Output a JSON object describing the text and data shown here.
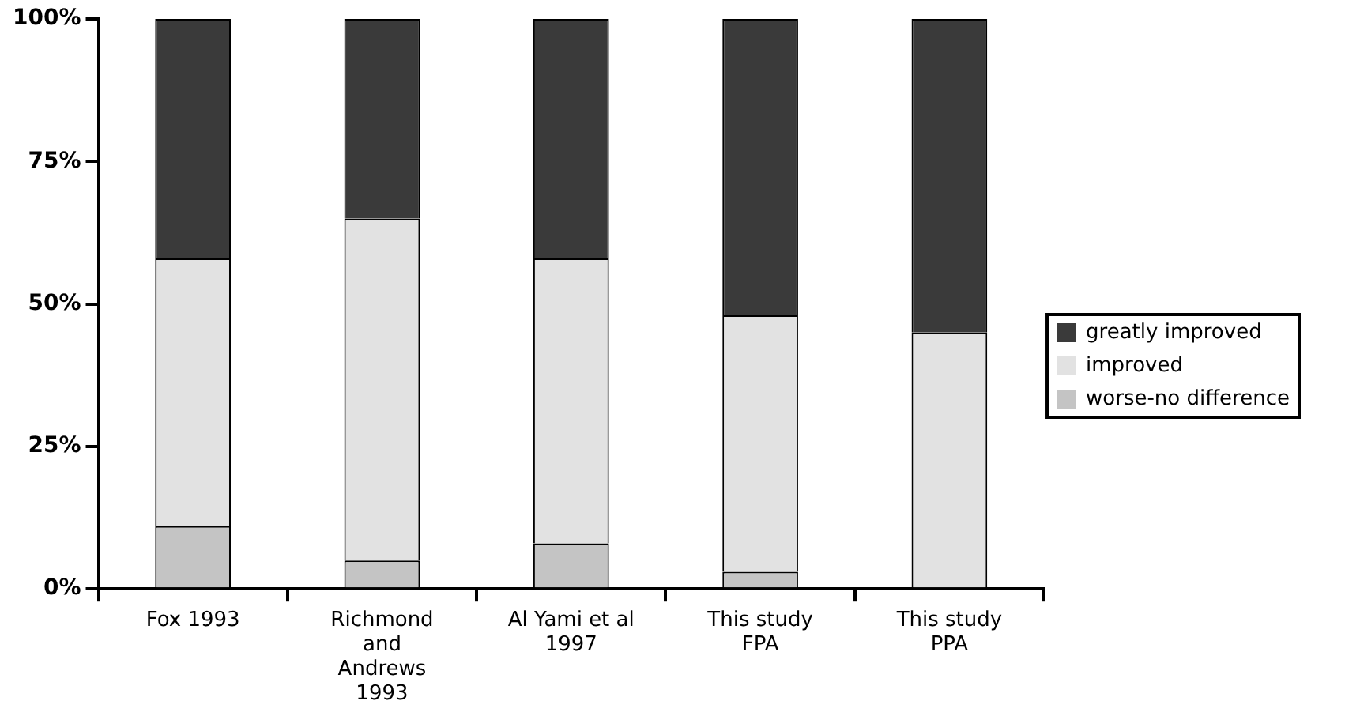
{
  "chart_data": {
    "type": "bar",
    "stacked": true,
    "categories": [
      "Fox 1993",
      "Richmond\nand\nAndrews\n1993",
      "Al Yami et al\n1997",
      "This study\nFPA",
      "This study\nPPA"
    ],
    "series": [
      {
        "name": "worse-no difference",
        "color": "#c4c4c4",
        "values": [
          11,
          5,
          8,
          3,
          0
        ]
      },
      {
        "name": "improved",
        "color": "#e2e2e2",
        "values": [
          47,
          60,
          50,
          45,
          45
        ]
      },
      {
        "name": "greatly improved",
        "color": "#3a3a3a",
        "values": [
          42,
          35,
          42,
          52,
          55
        ]
      }
    ],
    "ylim": [
      0,
      100
    ],
    "yticks": [
      {
        "value": 0,
        "label": "0%"
      },
      {
        "value": 25,
        "label": "25%"
      },
      {
        "value": 50,
        "label": "50%"
      },
      {
        "value": 75,
        "label": "75%"
      },
      {
        "value": 100,
        "label": "100%"
      }
    ],
    "legend": "right",
    "grid": false
  }
}
